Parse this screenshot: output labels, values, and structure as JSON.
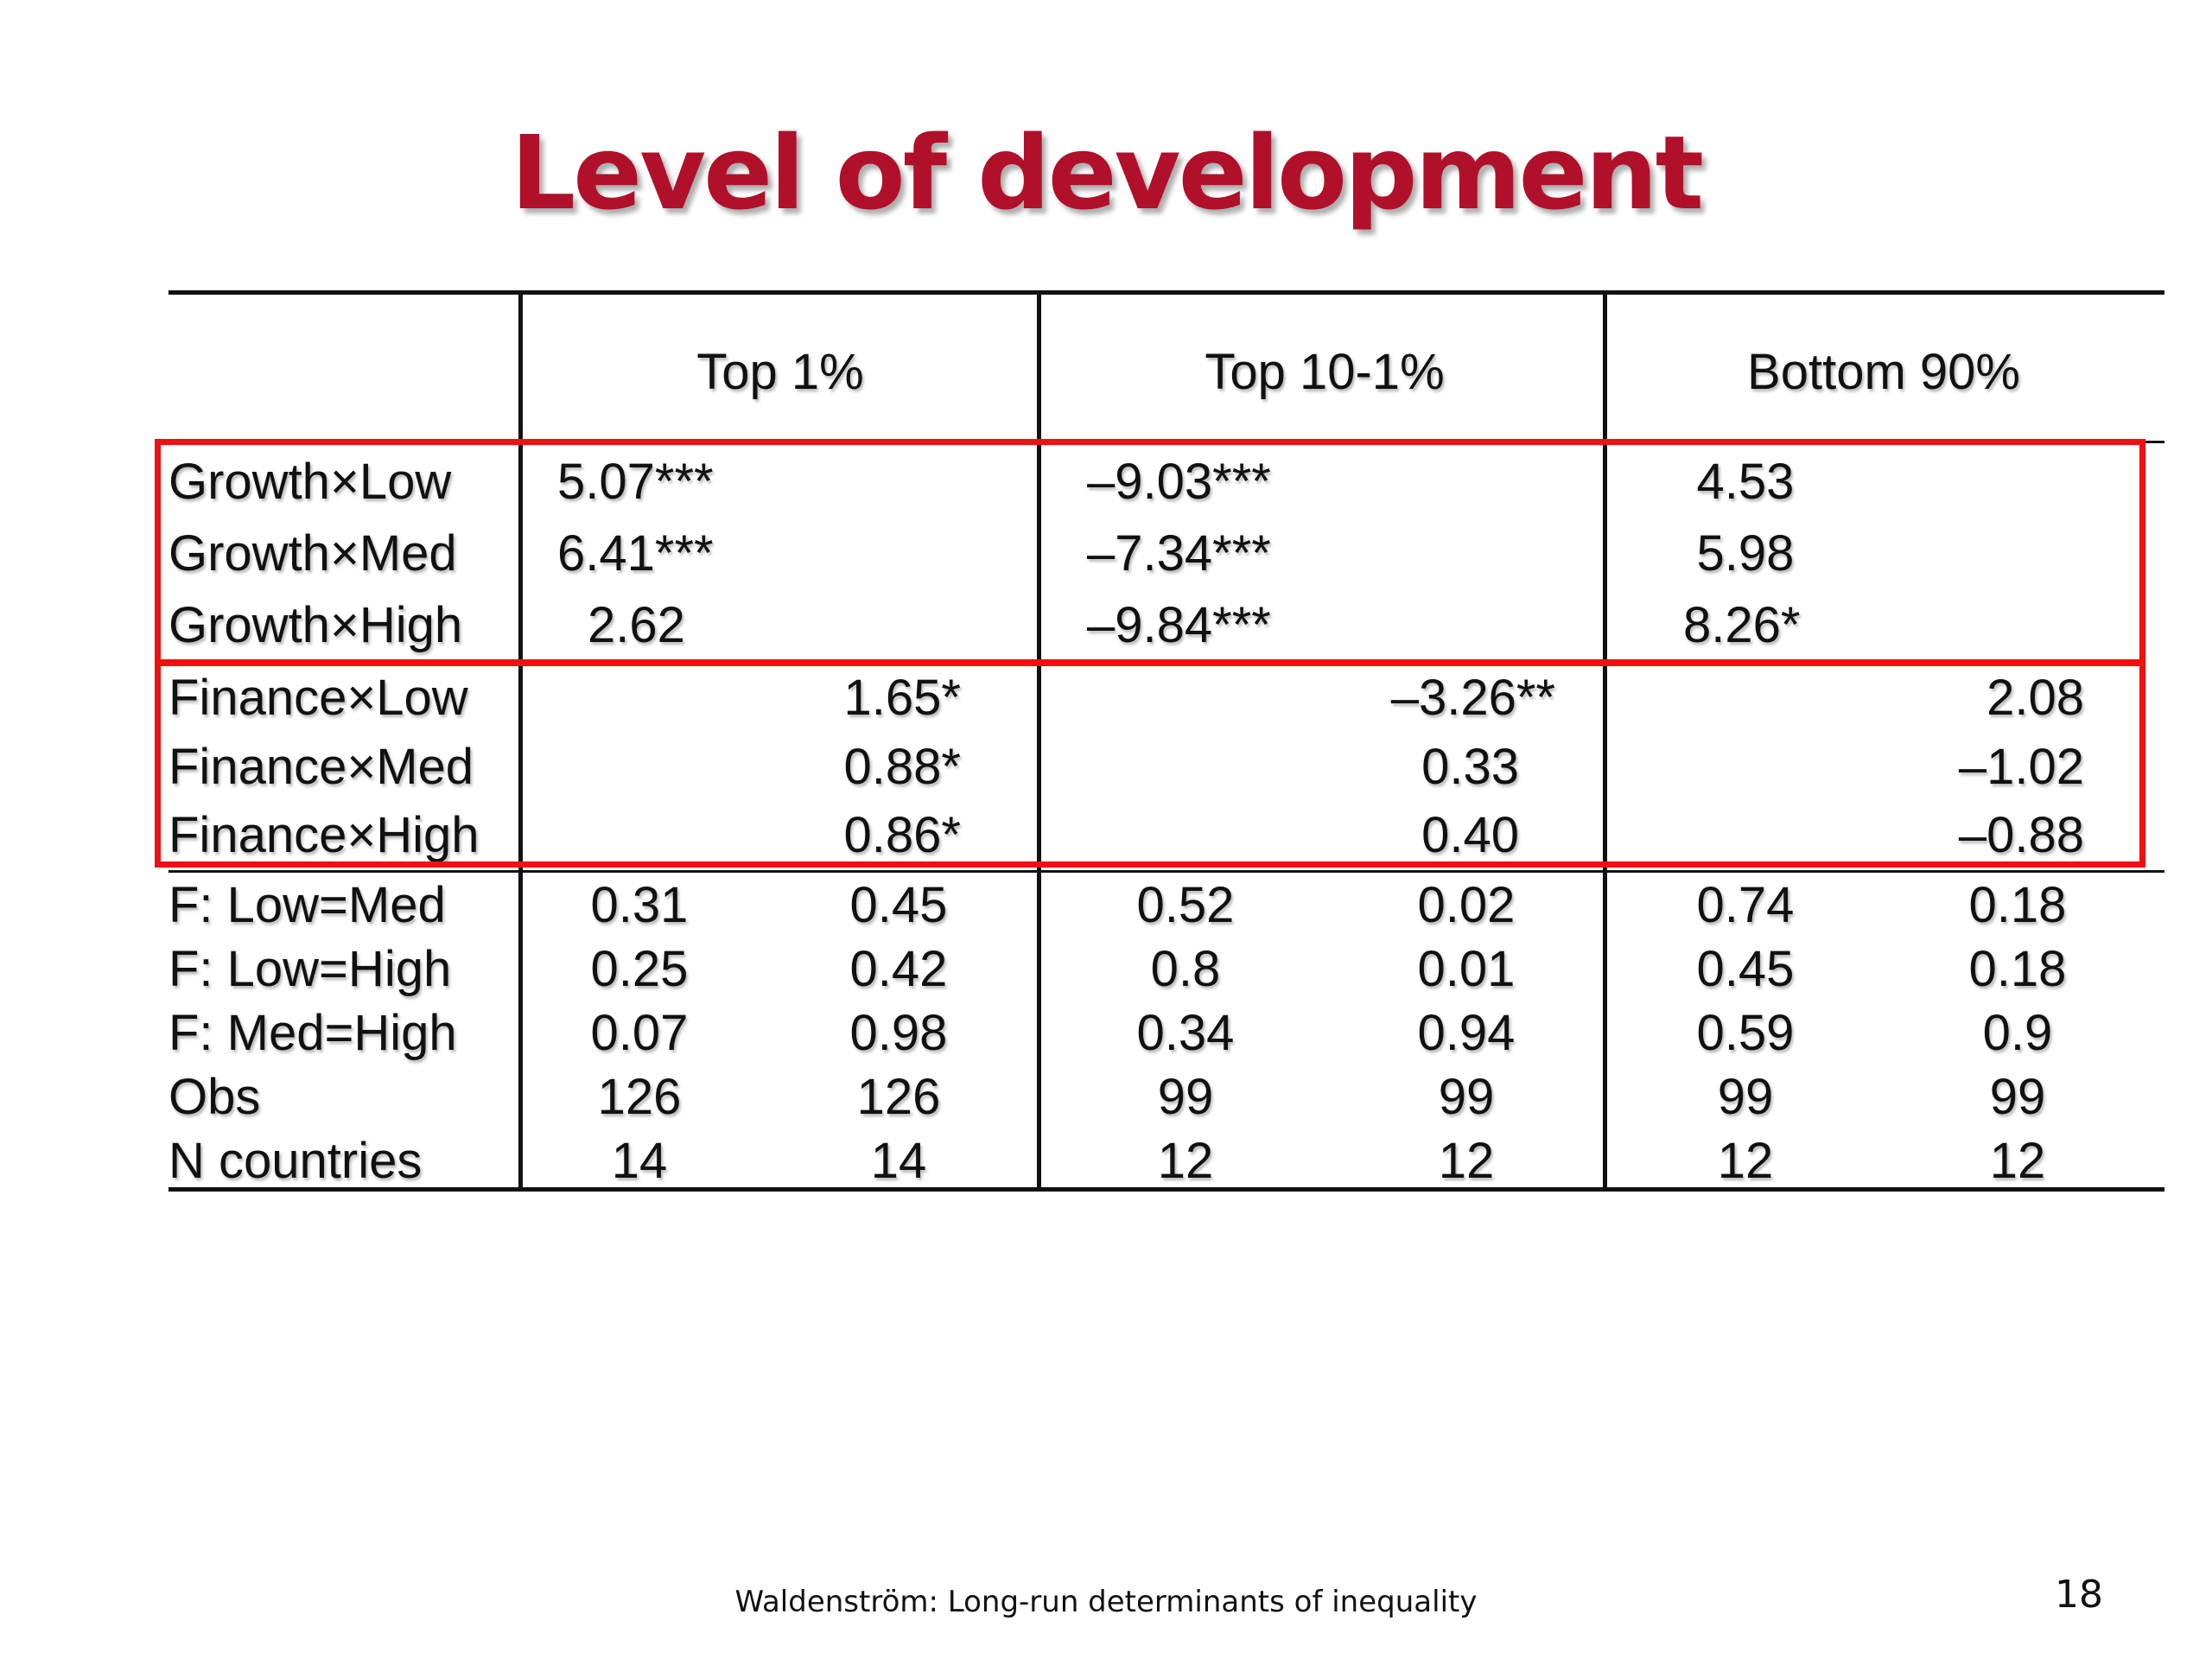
{
  "title": "Level of development",
  "title_color": "#b0102a",
  "highlight_color": "#ee1111",
  "table": {
    "columns": [
      "Top 1%",
      "Top 10-1%",
      "Bottom 90%"
    ],
    "growth_rows": [
      {
        "label": "Growth×Low",
        "values": [
          "5.07***",
          "–9.03***",
          "4.53"
        ]
      },
      {
        "label": "Growth×Med",
        "values": [
          "6.41***",
          "–7.34***",
          "5.98"
        ]
      },
      {
        "label": "Growth×High",
        "values": [
          "2.62",
          "–9.84***",
          "8.26*"
        ]
      }
    ],
    "finance_rows": [
      {
        "label": "Finance×Low",
        "values": [
          "1.65*",
          "–3.26**",
          "2.08"
        ]
      },
      {
        "label": "Finance×Med",
        "values": [
          "0.88*",
          "0.33",
          "–1.02"
        ]
      },
      {
        "label": "Finance×High",
        "values": [
          "0.86*",
          "0.40",
          "–0.88"
        ]
      }
    ],
    "stat_rows": [
      {
        "label": "F: Low=Med",
        "values": [
          "0.31",
          "0.45",
          "0.52",
          "0.02",
          "0.74",
          "0.18"
        ]
      },
      {
        "label": "F: Low=High",
        "values": [
          "0.25",
          "0.42",
          "0.8",
          "0.01",
          "0.45",
          "0.18"
        ]
      },
      {
        "label": "F: Med=High",
        "values": [
          "0.07",
          "0.98",
          "0.34",
          "0.94",
          "0.59",
          "0.9"
        ]
      },
      {
        "label": "Obs",
        "values": [
          "126",
          "126",
          "99",
          "99",
          "99",
          "99"
        ]
      },
      {
        "label": "N countries",
        "values": [
          "14",
          "14",
          "12",
          "12",
          "12",
          "12"
        ]
      }
    ]
  },
  "footer": "Waldenström: Long-run determinants of inequality",
  "page_number": "18"
}
